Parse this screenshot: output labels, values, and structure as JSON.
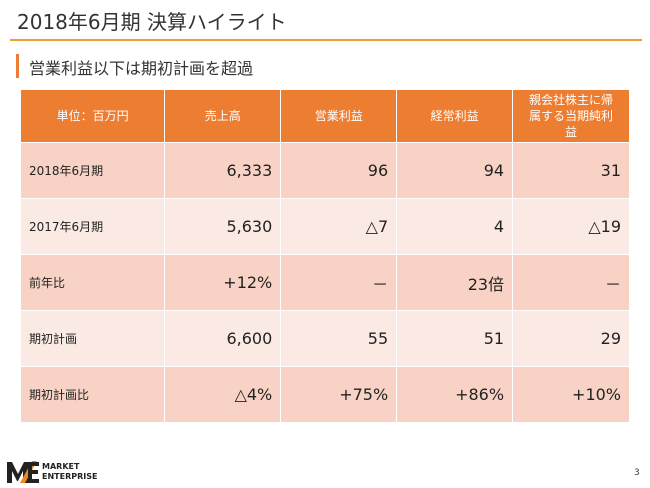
{
  "title": "2018年6月期 決算ハイライト",
  "subtitle": "営業利益以下は期初計画を超過",
  "table": {
    "headers": [
      "単位：百万円",
      "売上高",
      "営業利益",
      "経常利益",
      "親会社株主に帰属する当期純利益"
    ],
    "rows": [
      [
        "2018年6月期",
        "6,333",
        "96",
        "94",
        "31"
      ],
      [
        "2017年6月期",
        "5,630",
        "△7",
        "4",
        "△19"
      ],
      [
        "前年比",
        "+12%",
        "－",
        "23倍",
        "－"
      ],
      [
        "期初計画",
        "6,600",
        "55",
        "51",
        "29"
      ],
      [
        "期初計画比",
        "△4%",
        "+75%",
        "+86%",
        "+10%"
      ]
    ]
  },
  "footer": {
    "brand_line1": "MARKET",
    "brand_line2": "ENTERPRISE",
    "page": "3"
  },
  "colors": {
    "accent": "#ed7d31",
    "row_dark": "#f8d3c5",
    "row_light": "#fbe9e3"
  }
}
